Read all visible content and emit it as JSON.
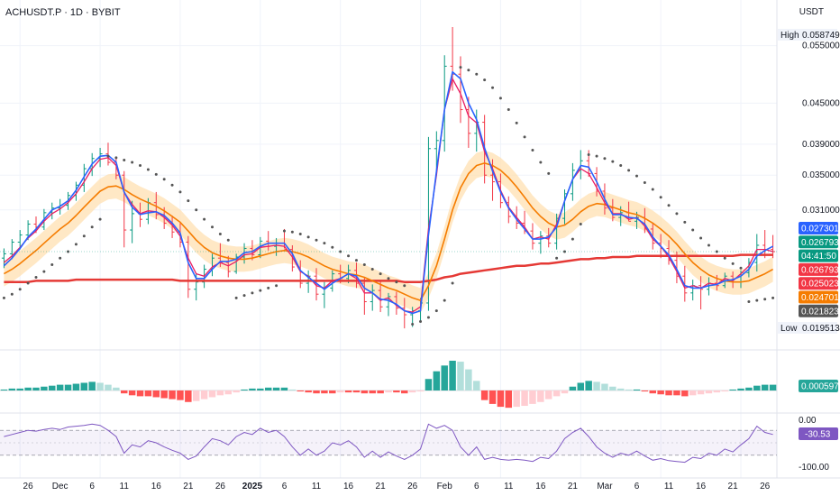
{
  "header": {
    "symbol": "ACHUSDT.P",
    "interval": "1D",
    "exchange": "BYBIT",
    "currency": "USDT",
    "title": "ACHUSDT.P · 1D · BYBIT"
  },
  "price_axis": {
    "ticks": [
      "0.055000",
      "0.045000",
      "0.039000",
      "0.035000",
      "0.031000"
    ],
    "high_label": "High",
    "high_value": "0.058749",
    "low_label": "Low",
    "low_value": "0.019513"
  },
  "price_badges": [
    {
      "value": "0.027301",
      "color": "#2962ff"
    },
    {
      "value": "0.026793",
      "color": "#089981"
    },
    {
      "value": "04:41:50",
      "color": "#089981"
    },
    {
      "value": "0.026793",
      "color": "#f23645"
    },
    {
      "value": "0.025023",
      "color": "#f23645"
    },
    {
      "value": "0.024701",
      "color": "#f57c00"
    },
    {
      "value": "0.021823",
      "color": "#555555"
    }
  ],
  "macd_axis": {
    "badge": "0.000597",
    "badge_color": "#26a69a"
  },
  "rsi_axis": {
    "top": "0.00",
    "bottom": "-100.00",
    "badge": "-30.53",
    "badge_color": "#7e57c2"
  },
  "x_axis": {
    "labels": [
      "26",
      "Dec",
      "6",
      "11",
      "16",
      "21",
      "26",
      "2025",
      "6",
      "11",
      "16",
      "21",
      "26",
      "Feb",
      "6",
      "11",
      "16",
      "21",
      "Mar",
      "6",
      "11",
      "16",
      "21",
      "26"
    ]
  },
  "colors": {
    "up": "#089981",
    "down": "#f23645",
    "blue": "#2962ff",
    "pink": "#e91e63",
    "orange": "#f57c00",
    "red": "#e53935",
    "band": "#ffe0b2",
    "psar": "#555555",
    "rsi": "#7e57c2"
  },
  "chart_data": {
    "type": "candlestick",
    "y_scale": "log",
    "ylim": [
      0.0195,
      0.0587
    ],
    "x_dates_start": "2024-11-23",
    "candles": [
      [
        0.0262,
        0.0271,
        0.0253,
        0.0266
      ],
      [
        0.0266,
        0.028,
        0.0261,
        0.0277
      ],
      [
        0.0277,
        0.0289,
        0.027,
        0.0284
      ],
      [
        0.0284,
        0.0299,
        0.0279,
        0.0295
      ],
      [
        0.0295,
        0.0303,
        0.0286,
        0.0292
      ],
      [
        0.0292,
        0.0311,
        0.0289,
        0.0307
      ],
      [
        0.0307,
        0.0318,
        0.03,
        0.0312
      ],
      [
        0.0312,
        0.0322,
        0.0305,
        0.0315
      ],
      [
        0.0315,
        0.033,
        0.031,
        0.0326
      ],
      [
        0.0326,
        0.0342,
        0.032,
        0.0338
      ],
      [
        0.0338,
        0.0364,
        0.033,
        0.0358
      ],
      [
        0.0358,
        0.0378,
        0.0349,
        0.0371
      ],
      [
        0.0371,
        0.0385,
        0.036,
        0.0377
      ],
      [
        0.0377,
        0.0392,
        0.0362,
        0.0366
      ],
      [
        0.0366,
        0.0373,
        0.0345,
        0.035
      ],
      [
        0.035,
        0.0355,
        0.0272,
        0.0289
      ],
      [
        0.0289,
        0.032,
        0.0276,
        0.0306
      ],
      [
        0.0306,
        0.0318,
        0.0292,
        0.03
      ],
      [
        0.03,
        0.0323,
        0.0295,
        0.0318
      ],
      [
        0.0318,
        0.033,
        0.03,
        0.0305
      ],
      [
        0.0305,
        0.0313,
        0.029,
        0.0296
      ],
      [
        0.0296,
        0.0304,
        0.0281,
        0.0287
      ],
      [
        0.0287,
        0.0296,
        0.0272,
        0.0277
      ],
      [
        0.0277,
        0.0283,
        0.0228,
        0.0235
      ],
      [
        0.0235,
        0.0248,
        0.0226,
        0.0241
      ],
      [
        0.0241,
        0.0256,
        0.0236,
        0.0252
      ],
      [
        0.0252,
        0.0266,
        0.0246,
        0.0262
      ],
      [
        0.0262,
        0.0276,
        0.0254,
        0.0258
      ],
      [
        0.0258,
        0.0264,
        0.0245,
        0.025
      ],
      [
        0.025,
        0.0266,
        0.0248,
        0.0263
      ],
      [
        0.0263,
        0.0276,
        0.0257,
        0.0271
      ],
      [
        0.0271,
        0.0279,
        0.026,
        0.0265
      ],
      [
        0.0265,
        0.0282,
        0.0262,
        0.0278
      ],
      [
        0.0278,
        0.0288,
        0.0269,
        0.0273
      ],
      [
        0.0273,
        0.0281,
        0.0264,
        0.0276
      ],
      [
        0.0276,
        0.029,
        0.0271,
        0.027
      ],
      [
        0.027,
        0.0274,
        0.025,
        0.0254
      ],
      [
        0.0254,
        0.026,
        0.0236,
        0.024
      ],
      [
        0.024,
        0.0251,
        0.0232,
        0.0246
      ],
      [
        0.0246,
        0.0253,
        0.0226,
        0.0231
      ],
      [
        0.0231,
        0.0241,
        0.022,
        0.0236
      ],
      [
        0.0236,
        0.0251,
        0.0233,
        0.0248
      ],
      [
        0.0248,
        0.0256,
        0.024,
        0.0244
      ],
      [
        0.0244,
        0.0256,
        0.024,
        0.0251
      ],
      [
        0.0251,
        0.0258,
        0.0236,
        0.024
      ],
      [
        0.024,
        0.0245,
        0.0215,
        0.0225
      ],
      [
        0.0225,
        0.0239,
        0.0218,
        0.0234
      ],
      [
        0.0234,
        0.0242,
        0.0217,
        0.0221
      ],
      [
        0.0221,
        0.0232,
        0.0214,
        0.0229
      ],
      [
        0.0229,
        0.0233,
        0.0215,
        0.022
      ],
      [
        0.022,
        0.0228,
        0.0205,
        0.0215
      ],
      [
        0.0215,
        0.0221,
        0.0206,
        0.0218
      ],
      [
        0.0218,
        0.0228,
        0.021,
        0.0224
      ],
      [
        0.0224,
        0.04,
        0.0218,
        0.0384
      ],
      [
        0.0384,
        0.0408,
        0.035,
        0.0395
      ],
      [
        0.0395,
        0.0532,
        0.038,
        0.0512
      ],
      [
        0.0512,
        0.0587,
        0.047,
        0.0498
      ],
      [
        0.0498,
        0.053,
        0.042,
        0.044
      ],
      [
        0.044,
        0.046,
        0.0385,
        0.0405
      ],
      [
        0.0405,
        0.044,
        0.038,
        0.0421
      ],
      [
        0.0421,
        0.0432,
        0.034,
        0.035
      ],
      [
        0.035,
        0.037,
        0.032,
        0.0342
      ],
      [
        0.0342,
        0.0352,
        0.0312,
        0.0318
      ],
      [
        0.0318,
        0.0325,
        0.0296,
        0.0303
      ],
      [
        0.0303,
        0.0314,
        0.029,
        0.0296
      ],
      [
        0.0296,
        0.0309,
        0.0285,
        0.0288
      ],
      [
        0.0288,
        0.0296,
        0.027,
        0.0276
      ],
      [
        0.0276,
        0.0288,
        0.0266,
        0.0283
      ],
      [
        0.0283,
        0.0291,
        0.0272,
        0.0276
      ],
      [
        0.0276,
        0.0306,
        0.027,
        0.0301
      ],
      [
        0.0301,
        0.0333,
        0.0295,
        0.0328
      ],
      [
        0.0328,
        0.0365,
        0.032,
        0.0356
      ],
      [
        0.0356,
        0.0382,
        0.0345,
        0.0368
      ],
      [
        0.0368,
        0.0382,
        0.0348,
        0.0352
      ],
      [
        0.0352,
        0.036,
        0.0325,
        0.0331
      ],
      [
        0.0331,
        0.034,
        0.0305,
        0.0312
      ],
      [
        0.0312,
        0.0322,
        0.0298,
        0.0302
      ],
      [
        0.0302,
        0.0314,
        0.0293,
        0.0307
      ],
      [
        0.0307,
        0.0319,
        0.0298,
        0.0298
      ],
      [
        0.0298,
        0.0308,
        0.029,
        0.0302
      ],
      [
        0.0302,
        0.0312,
        0.0286,
        0.029
      ],
      [
        0.029,
        0.0296,
        0.027,
        0.0276
      ],
      [
        0.0276,
        0.0285,
        0.0262,
        0.0271
      ],
      [
        0.0271,
        0.0279,
        0.0256,
        0.026
      ],
      [
        0.026,
        0.0268,
        0.024,
        0.0246
      ],
      [
        0.0246,
        0.0255,
        0.0225,
        0.0232
      ],
      [
        0.0232,
        0.0243,
        0.0226,
        0.0238
      ],
      [
        0.0238,
        0.0246,
        0.0219,
        0.0235
      ],
      [
        0.0235,
        0.0245,
        0.023,
        0.024
      ],
      [
        0.024,
        0.0247,
        0.0234,
        0.0238
      ],
      [
        0.0238,
        0.0249,
        0.0236,
        0.0246
      ],
      [
        0.0246,
        0.025,
        0.0236,
        0.0241
      ],
      [
        0.0241,
        0.0251,
        0.0236,
        0.0249
      ],
      [
        0.0249,
        0.0262,
        0.0245,
        0.0258
      ],
      [
        0.0258,
        0.0285,
        0.025,
        0.0274
      ],
      [
        0.0274,
        0.0289,
        0.0262,
        0.027
      ],
      [
        0.027,
        0.0284,
        0.0262,
        0.0268
      ]
    ],
    "ma_blue": [
      0.0255,
      0.0262,
      0.0271,
      0.0282,
      0.029,
      0.03,
      0.031,
      0.0314,
      0.032,
      0.0332,
      0.0348,
      0.0364,
      0.0374,
      0.0375,
      0.0366,
      0.033,
      0.0313,
      0.0305,
      0.0307,
      0.0308,
      0.0304,
      0.0296,
      0.0286,
      0.0258,
      0.0244,
      0.0244,
      0.0252,
      0.0259,
      0.0259,
      0.0261,
      0.0267,
      0.0268,
      0.0273,
      0.0276,
      0.0276,
      0.0276,
      0.0266,
      0.0251,
      0.0245,
      0.024,
      0.0235,
      0.024,
      0.0244,
      0.0248,
      0.0246,
      0.0236,
      0.0232,
      0.0227,
      0.0226,
      0.0223,
      0.0218,
      0.0216,
      0.0218,
      0.0284,
      0.0355,
      0.044,
      0.0502,
      0.049,
      0.045,
      0.0425,
      0.0385,
      0.0355,
      0.033,
      0.0312,
      0.03,
      0.029,
      0.028,
      0.028,
      0.0282,
      0.0292,
      0.032,
      0.0345,
      0.0362,
      0.036,
      0.0342,
      0.0322,
      0.0305,
      0.0305,
      0.0302,
      0.0301,
      0.0295,
      0.0282,
      0.0273,
      0.0265,
      0.0252,
      0.0238,
      0.0236,
      0.0236,
      0.0238,
      0.0239,
      0.0242,
      0.0243,
      0.0246,
      0.0252,
      0.0264,
      0.0269,
      0.0273
    ],
    "ma_pink": [
      0.0258,
      0.0264,
      0.0272,
      0.0281,
      0.0288,
      0.0298,
      0.0306,
      0.0311,
      0.0318,
      0.0328,
      0.0342,
      0.0358,
      0.037,
      0.0372,
      0.0362,
      0.033,
      0.0316,
      0.0306,
      0.0309,
      0.0308,
      0.0302,
      0.0294,
      0.0283,
      0.0262,
      0.0248,
      0.0246,
      0.0254,
      0.0258,
      0.0255,
      0.0259,
      0.0265,
      0.0266,
      0.0272,
      0.0273,
      0.0274,
      0.0273,
      0.0263,
      0.025,
      0.0246,
      0.0238,
      0.0236,
      0.0242,
      0.0244,
      0.0248,
      0.0244,
      0.0232,
      0.0232,
      0.0226,
      0.0228,
      0.0222,
      0.0218,
      0.0217,
      0.0221,
      0.029,
      0.035,
      0.044,
      0.049,
      0.0465,
      0.043,
      0.042,
      0.038,
      0.0358,
      0.0332,
      0.0313,
      0.0302,
      0.0292,
      0.028,
      0.0282,
      0.028,
      0.0295,
      0.032,
      0.0345,
      0.0358,
      0.0352,
      0.0335,
      0.0318,
      0.0306,
      0.0306,
      0.03,
      0.0302,
      0.0293,
      0.028,
      0.0273,
      0.0263,
      0.025,
      0.0236,
      0.0238,
      0.0236,
      0.024,
      0.0239,
      0.0244,
      0.0242,
      0.0248,
      0.0255,
      0.027,
      0.027,
      0.0268
    ],
    "ma_orange": [
      0.0248,
      0.0252,
      0.0257,
      0.0263,
      0.0269,
      0.0276,
      0.0283,
      0.029,
      0.0296,
      0.0304,
      0.0313,
      0.0322,
      0.0331,
      0.0336,
      0.0337,
      0.0333,
      0.0327,
      0.0322,
      0.0318,
      0.0314,
      0.0309,
      0.0303,
      0.0297,
      0.0288,
      0.0279,
      0.0272,
      0.0267,
      0.0264,
      0.0262,
      0.0261,
      0.0261,
      0.0262,
      0.0264,
      0.0266,
      0.0268,
      0.0269,
      0.0268,
      0.0266,
      0.0263,
      0.0259,
      0.0255,
      0.0252,
      0.025,
      0.0248,
      0.0247,
      0.0245,
      0.0242,
      0.0239,
      0.0236,
      0.0234,
      0.0231,
      0.0228,
      0.0226,
      0.0238,
      0.0255,
      0.028,
      0.031,
      0.0335,
      0.0352,
      0.0362,
      0.0365,
      0.0362,
      0.0356,
      0.0347,
      0.0336,
      0.0324,
      0.0312,
      0.0303,
      0.0296,
      0.0292,
      0.0294,
      0.03,
      0.0308,
      0.0314,
      0.0317,
      0.0316,
      0.0313,
      0.031,
      0.0307,
      0.0305,
      0.0301,
      0.0296,
      0.029,
      0.0283,
      0.0275,
      0.0266,
      0.0258,
      0.0252,
      0.0247,
      0.0244,
      0.0242,
      0.0241,
      0.0241,
      0.0242,
      0.0245,
      0.0248,
      0.0252
    ],
    "ma_red": [
      0.0241,
      0.0241,
      0.0241,
      0.0241,
      0.0242,
      0.0242,
      0.0242,
      0.0242,
      0.0242,
      0.0243,
      0.0243,
      0.0243,
      0.0243,
      0.0243,
      0.0243,
      0.0243,
      0.0243,
      0.0243,
      0.0243,
      0.0243,
      0.0243,
      0.0243,
      0.0242,
      0.0242,
      0.0242,
      0.0242,
      0.0242,
      0.0242,
      0.0242,
      0.0242,
      0.0242,
      0.0242,
      0.0242,
      0.0242,
      0.0242,
      0.0242,
      0.0242,
      0.0242,
      0.0242,
      0.0242,
      0.0242,
      0.0242,
      0.0242,
      0.0242,
      0.0242,
      0.0242,
      0.0242,
      0.0242,
      0.0242,
      0.0242,
      0.0241,
      0.0241,
      0.0241,
      0.0242,
      0.0243,
      0.0245,
      0.0246,
      0.0248,
      0.0249,
      0.025,
      0.0251,
      0.0252,
      0.0253,
      0.0254,
      0.0255,
      0.0255,
      0.0256,
      0.0257,
      0.0257,
      0.0258,
      0.0259,
      0.026,
      0.0261,
      0.0261,
      0.0262,
      0.0262,
      0.0263,
      0.0263,
      0.0263,
      0.0264,
      0.0264,
      0.0264,
      0.0264,
      0.0264,
      0.0264,
      0.0264,
      0.0264,
      0.0264,
      0.0264,
      0.0264,
      0.0264,
      0.0264,
      0.0265,
      0.0265,
      0.0265,
      0.0265,
      0.0265
    ],
    "psar": [
      0.0228,
      0.0231,
      0.0235,
      0.024,
      0.0245,
      0.025,
      0.0256,
      0.0262,
      0.0268,
      0.0275,
      0.0283,
      0.0292,
      0.03,
      0.0374,
      0.0372,
      0.0369,
      0.0366,
      0.0362,
      0.0357,
      0.0351,
      0.0345,
      0.0338,
      0.033,
      0.032,
      0.031,
      0.03,
      0.0292,
      0.0285,
      0.0279,
      0.0228,
      0.023,
      0.0232,
      0.0234,
      0.0236,
      0.0238,
      0.0288,
      0.0287,
      0.0285,
      0.0282,
      0.0279,
      0.0276,
      0.0272,
      0.0268,
      0.0264,
      0.026,
      0.0256,
      0.0252,
      0.0248,
      0.0244,
      0.0241,
      0.0238,
      0.0208,
      0.021,
      0.0213,
      0.0218,
      0.0226,
      0.024,
      0.051,
      0.0505,
      0.0498,
      0.0488,
      0.0475,
      0.0458,
      0.044,
      0.042,
      0.04,
      0.0382,
      0.0366,
      0.0352,
      0.0262,
      0.0268,
      0.028,
      0.0295,
      0.0376,
      0.0374,
      0.0371,
      0.0367,
      0.0362,
      0.0356,
      0.0349,
      0.0341,
      0.0333,
      0.0324,
      0.0315,
      0.0306,
      0.0297,
      0.0289,
      0.0281,
      0.0274,
      0.0268,
      0.0262,
      0.0257,
      0.0253,
      0.0225,
      0.0226,
      0.0227,
      0.0228
    ],
    "macd_hist": [
      0.0001,
      0.0002,
      0.0002,
      0.0003,
      0.0003,
      0.0004,
      0.0005,
      0.0006,
      0.0006,
      0.0007,
      0.0008,
      0.0009,
      0.0008,
      0.0006,
      0.0003,
      -0.0003,
      -0.0005,
      -0.0006,
      -0.0006,
      -0.0007,
      -0.0008,
      -0.0009,
      -0.001,
      -0.0012,
      -0.0011,
      -0.0009,
      -0.0007,
      -0.0005,
      -0.0004,
      -0.0002,
      0.0001,
      0.0002,
      0.0002,
      0.0003,
      0.0003,
      0.0003,
      0.0001,
      -0.0001,
      -0.0002,
      -0.0003,
      -0.0003,
      -0.0003,
      -0.0002,
      -0.0002,
      -0.0002,
      -0.0003,
      -0.0003,
      -0.0003,
      -0.0002,
      -0.0002,
      -0.0003,
      -0.0002,
      -0.0001,
      0.0012,
      0.002,
      0.0026,
      0.0031,
      0.003,
      0.0022,
      0.001,
      -0.001,
      -0.0014,
      -0.0017,
      -0.0018,
      -0.0017,
      -0.0016,
      -0.0014,
      -0.0012,
      -0.0009,
      -0.0006,
      -0.0003,
      0.0004,
      0.0008,
      0.001,
      0.0009,
      0.0007,
      0.0004,
      0.0002,
      0.0001,
      0.0001,
      -0.0001,
      -0.0003,
      -0.0004,
      -0.0005,
      -0.0005,
      -0.0006,
      -0.0005,
      -0.0004,
      -0.0003,
      -0.0002,
      -0.0001,
      0.0001,
      0.0002,
      0.0003,
      0.0005,
      0.0006,
      0.0006
    ],
    "rsi": [
      -35,
      -30,
      -25,
      -20,
      -22,
      -18,
      -15,
      -18,
      -12,
      -10,
      -8,
      -5,
      -8,
      -20,
      -35,
      -75,
      -55,
      -60,
      -45,
      -50,
      -60,
      -68,
      -75,
      -90,
      -82,
      -60,
      -40,
      -45,
      -55,
      -35,
      -25,
      -30,
      -15,
      -25,
      -20,
      -35,
      -60,
      -80,
      -65,
      -80,
      -70,
      -50,
      -55,
      -45,
      -60,
      -85,
      -70,
      -85,
      -72,
      -82,
      -90,
      -80,
      -65,
      -5,
      -15,
      -8,
      -20,
      -60,
      -80,
      -60,
      -90,
      -85,
      -90,
      -92,
      -90,
      -92,
      -95,
      -85,
      -88,
      -70,
      -40,
      -25,
      -15,
      -35,
      -60,
      -75,
      -85,
      -75,
      -80,
      -70,
      -82,
      -92,
      -88,
      -93,
      -95,
      -97,
      -85,
      -88,
      -75,
      -80,
      -65,
      -72,
      -55,
      -40,
      -10,
      -25,
      -30
    ]
  }
}
